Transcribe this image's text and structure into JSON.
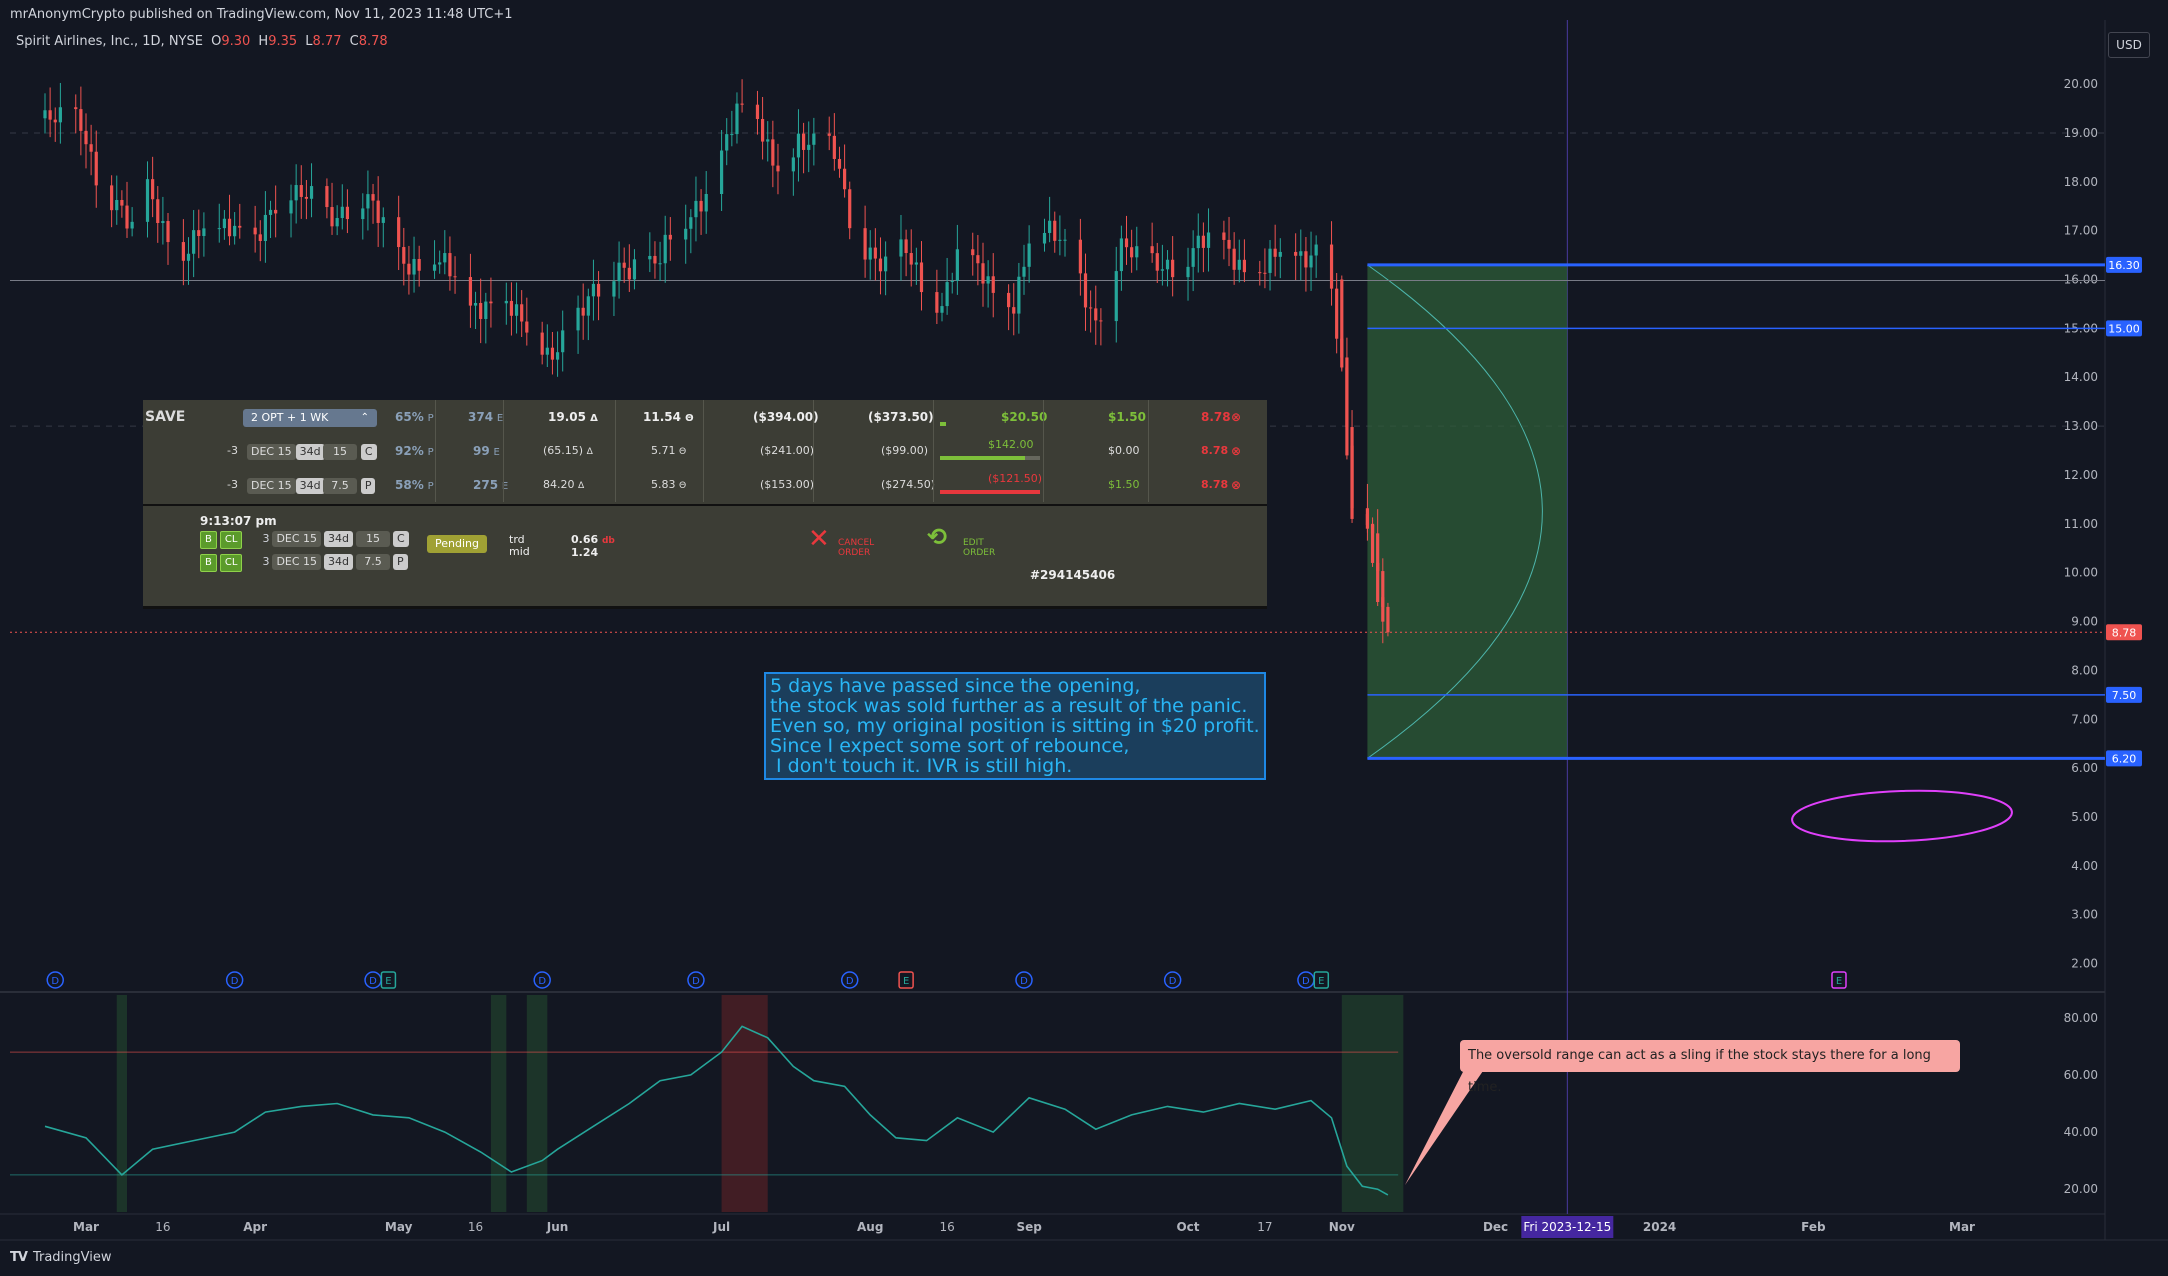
{
  "header": {
    "published": "mrAnonymCrypto published on TradingView.com, Nov 11, 2023 11:48 UTC+1",
    "symbol": "Spirit Airlines, Inc., 1D, NYSE",
    "open_label": "O",
    "open": "9.30",
    "high_label": "H",
    "high": "9.35",
    "low_label": "L",
    "low": "8.77",
    "close_label": "C",
    "close": "8.78",
    "currency": "USD"
  },
  "footer": {
    "logo": "TV",
    "brand": "TradingView"
  },
  "broker": {
    "save_label": "SAVE",
    "summary": {
      "strategy": "2 OPT + 1 WK",
      "prob": "65%",
      "prob_suffix": "P",
      "e": "374",
      "e_suffix": "E",
      "delta": "19.05",
      "delta_suffix": "Δ",
      "theta": "11.54",
      "theta_suffix": "Θ",
      "cost": "($394.00)",
      "value": "($373.50)",
      "pl": "$20.50",
      "mark": "$1.50",
      "price": "8.78"
    },
    "legs": [
      {
        "qty": "-3",
        "exp": "DEC 15",
        "dte": "34d",
        "strike": "15",
        "type": "C",
        "prob": "92%",
        "e": "99",
        "delta": "(65.15)",
        "theta": "5.71",
        "cost": "($241.00)",
        "value": "($99.00)",
        "pl": "$142.00",
        "mark": "$0.00",
        "price": "8.78",
        "pl_bar_pct": 85
      },
      {
        "qty": "-3",
        "exp": "DEC 15",
        "dte": "34d",
        "strike": "7.5",
        "type": "P",
        "prob": "58%",
        "e": "275",
        "delta": "84.20",
        "theta": "5.83",
        "cost": "($153.00)",
        "value": "($274.50)",
        "pl": "($121.50)",
        "mark": "$1.50",
        "price": "8.78",
        "pl_bar_pct": 100
      }
    ],
    "order": {
      "time": "9:13:07 pm",
      "side": "B",
      "action": "CL",
      "lines": [
        {
          "qty": "3",
          "exp": "DEC 15",
          "dte": "34d",
          "strike": "15",
          "type": "C"
        },
        {
          "qty": "3",
          "exp": "DEC 15",
          "dte": "34d",
          "strike": "7.5",
          "type": "P"
        }
      ],
      "status": "Pending",
      "trd_label": "trd",
      "mid_label": "mid",
      "trd": "0.66",
      "trd_suffix": "db",
      "mid": "1.24",
      "cancel_label": "CANCEL ORDER",
      "edit_label": "EDIT ORDER",
      "order_no": "#294145406"
    }
  },
  "annotation_text": "5 days have passed since the opening,\nthe stock was sold further as a result of the panic.\nEven so, my original position is sitting in $20 profit.\nSince I expect some sort of rebounce,\n I don't touch it. IVR is still high.",
  "callout_text": "The oversold range can act as a sling if the stock stays there for a long time.",
  "colors": {
    "up": "#26a69a",
    "down": "#ef5350",
    "level": "#2962ff",
    "range_fill": "#2e5e38",
    "ellipse": "#e040fb",
    "indicator": "#26a69a",
    "date_highlight": "#4527a0"
  },
  "chart_data": {
    "type": "candlestick",
    "price_axis": {
      "ticks": [
        "20.00",
        "19.00",
        "18.00",
        "17.00",
        "16.00",
        "15.00",
        "14.00",
        "13.00",
        "12.00",
        "11.00",
        "10.00",
        "9.00",
        "8.00",
        "7.00",
        "6.00",
        "5.00",
        "4.00",
        "3.00",
        "2.00"
      ],
      "ylim": [
        1.5,
        20.8
      ]
    },
    "time_axis": {
      "ticks": [
        {
          "label": "Mar",
          "date": "2023-03-01"
        },
        {
          "label": "16",
          "date": "2023-03-16"
        },
        {
          "label": "Apr",
          "date": "2023-04-03"
        },
        {
          "label": "May",
          "date": "2023-05-01"
        },
        {
          "label": "16",
          "date": "2023-05-16"
        },
        {
          "label": "Jun",
          "date": "2023-06-01"
        },
        {
          "label": "Jul",
          "date": "2023-07-03"
        },
        {
          "label": "Aug",
          "date": "2023-08-01"
        },
        {
          "label": "16",
          "date": "2023-08-16"
        },
        {
          "label": "Sep",
          "date": "2023-09-01"
        },
        {
          "label": "Oct",
          "date": "2023-10-02"
        },
        {
          "label": "17",
          "date": "2023-10-17"
        },
        {
          "label": "Nov",
          "date": "2023-11-01"
        },
        {
          "label": "Dec",
          "date": "2023-12-01"
        },
        {
          "label": "2024",
          "date": "2024-01-02"
        },
        {
          "label": "Feb",
          "date": "2024-02-01"
        },
        {
          "label": "Mar",
          "date": "2024-03-01"
        }
      ]
    },
    "highlight_date": {
      "label": "Fri 2023-12-15",
      "date": "2023-12-15"
    },
    "price_levels": [
      {
        "label": "16.30",
        "value": 16.3
      },
      {
        "label": "15.00",
        "value": 15.0
      },
      {
        "label": "8.78",
        "value": 8.78,
        "style": "last-price"
      },
      {
        "label": "7.50",
        "value": 7.5
      },
      {
        "label": "6.20",
        "value": 6.2
      }
    ],
    "range_box": {
      "x_start": "2023-11-06",
      "x_end": "2023-12-15",
      "y_low": 6.2,
      "y_high": 16.3
    },
    "close_series": [
      [
        "2023-02-21",
        19.3
      ],
      [
        "2023-02-24",
        19.0
      ],
      [
        "2023-02-28",
        19.1
      ],
      [
        "2023-03-03",
        18.4
      ],
      [
        "2023-03-07",
        17.7
      ],
      [
        "2023-03-10",
        16.8
      ],
      [
        "2023-03-13",
        17.6
      ],
      [
        "2023-03-16",
        17.1
      ],
      [
        "2023-03-20",
        16.8
      ],
      [
        "2023-03-23",
        17.0
      ],
      [
        "2023-03-27",
        16.7
      ],
      [
        "2023-03-30",
        17.0
      ],
      [
        "2023-04-03",
        17.2
      ],
      [
        "2023-04-06",
        17.5
      ],
      [
        "2023-04-11",
        17.4
      ],
      [
        "2023-04-14",
        17.7
      ],
      [
        "2023-04-18",
        17.6
      ],
      [
        "2023-04-21",
        17.5
      ],
      [
        "2023-04-25",
        17.3
      ],
      [
        "2023-04-28",
        17.0
      ],
      [
        "2023-05-03",
        16.6
      ],
      [
        "2023-05-08",
        16.2
      ],
      [
        "2023-05-11",
        15.9
      ],
      [
        "2023-05-15",
        15.6
      ],
      [
        "2023-05-18",
        15.8
      ],
      [
        "2023-05-22",
        15.4
      ],
      [
        "2023-05-25",
        14.8
      ],
      [
        "2023-05-30",
        14.6
      ],
      [
        "2023-06-02",
        15.1
      ],
      [
        "2023-06-06",
        15.3
      ],
      [
        "2023-06-09",
        15.5
      ],
      [
        "2023-06-13",
        16.3
      ],
      [
        "2023-06-16",
        16.6
      ],
      [
        "2023-06-21",
        16.3
      ],
      [
        "2023-06-26",
        17.0
      ],
      [
        "2023-06-29",
        17.8
      ],
      [
        "2023-07-03",
        18.8
      ],
      [
        "2023-07-06",
        19.3
      ],
      [
        "2023-07-10",
        19.0
      ],
      [
        "2023-07-13",
        18.5
      ],
      [
        "2023-07-18",
        19.0
      ],
      [
        "2023-07-21",
        18.6
      ],
      [
        "2023-07-25",
        18.4
      ],
      [
        "2023-07-28",
        17.4
      ],
      [
        "2023-08-01",
        16.8
      ],
      [
        "2023-08-04",
        16.2
      ],
      [
        "2023-08-08",
        16.3
      ],
      [
        "2023-08-11",
        15.9
      ],
      [
        "2023-08-15",
        15.8
      ],
      [
        "2023-08-18",
        16.6
      ],
      [
        "2023-08-22",
        15.9
      ],
      [
        "2023-08-25",
        15.6
      ],
      [
        "2023-08-29",
        15.8
      ],
      [
        "2023-09-01",
        17.0
      ],
      [
        "2023-09-06",
        16.6
      ],
      [
        "2023-09-11",
        16.2
      ],
      [
        "2023-09-14",
        15.4
      ],
      [
        "2023-09-19",
        16.4
      ],
      [
        "2023-09-22",
        16.2
      ],
      [
        "2023-09-27",
        16.6
      ],
      [
        "2023-10-02",
        16.4
      ],
      [
        "2023-10-05",
        16.5
      ],
      [
        "2023-10-10",
        16.7
      ],
      [
        "2023-10-13",
        16.5
      ],
      [
        "2023-10-17",
        16.2
      ],
      [
        "2023-10-20",
        16.3
      ],
      [
        "2023-10-24",
        16.4
      ],
      [
        "2023-10-27",
        16.9
      ],
      [
        "2023-10-30",
        15.9
      ],
      [
        "2023-11-01",
        14.2
      ],
      [
        "2023-11-03",
        11.2
      ],
      [
        "2023-11-06",
        10.9
      ],
      [
        "2023-11-08",
        10.1
      ],
      [
        "2023-11-09",
        9.3
      ],
      [
        "2023-11-10",
        8.78
      ]
    ],
    "indicator": {
      "axis_ticks": [
        "80.00",
        "60.00",
        "40.00",
        "20.00"
      ],
      "ylim": [
        12,
        88
      ],
      "overbought": 68,
      "oversold": 25,
      "series": [
        [
          "2023-02-21",
          42
        ],
        [
          "2023-03-01",
          38
        ],
        [
          "2023-03-08",
          25
        ],
        [
          "2023-03-14",
          34
        ],
        [
          "2023-03-22",
          37
        ],
        [
          "2023-03-30",
          40
        ],
        [
          "2023-04-05",
          47
        ],
        [
          "2023-04-12",
          49
        ],
        [
          "2023-04-19",
          50
        ],
        [
          "2023-04-26",
          46
        ],
        [
          "2023-05-03",
          45
        ],
        [
          "2023-05-10",
          40
        ],
        [
          "2023-05-17",
          33
        ],
        [
          "2023-05-23",
          26
        ],
        [
          "2023-05-29",
          30
        ],
        [
          "2023-06-01",
          34
        ],
        [
          "2023-06-08",
          42
        ],
        [
          "2023-06-15",
          50
        ],
        [
          "2023-06-21",
          58
        ],
        [
          "2023-06-27",
          60
        ],
        [
          "2023-07-03",
          68
        ],
        [
          "2023-07-07",
          77
        ],
        [
          "2023-07-12",
          73
        ],
        [
          "2023-07-17",
          63
        ],
        [
          "2023-07-21",
          58
        ],
        [
          "2023-07-27",
          56
        ],
        [
          "2023-08-01",
          46
        ],
        [
          "2023-08-06",
          38
        ],
        [
          "2023-08-12",
          37
        ],
        [
          "2023-08-18",
          45
        ],
        [
          "2023-08-25",
          40
        ],
        [
          "2023-09-01",
          52
        ],
        [
          "2023-09-08",
          48
        ],
        [
          "2023-09-14",
          41
        ],
        [
          "2023-09-21",
          46
        ],
        [
          "2023-09-28",
          49
        ],
        [
          "2023-10-05",
          47
        ],
        [
          "2023-10-12",
          50
        ],
        [
          "2023-10-19",
          48
        ],
        [
          "2023-10-26",
          51
        ],
        [
          "2023-10-30",
          45
        ],
        [
          "2023-11-02",
          28
        ],
        [
          "2023-11-05",
          21
        ],
        [
          "2023-11-08",
          20
        ],
        [
          "2023-11-10",
          18
        ]
      ],
      "highlight_zones": [
        {
          "start": "2023-03-07",
          "end": "2023-03-09",
          "kind": "oversold"
        },
        {
          "start": "2023-05-19",
          "end": "2023-05-22",
          "kind": "oversold"
        },
        {
          "start": "2023-05-26",
          "end": "2023-05-30",
          "kind": "oversold"
        },
        {
          "start": "2023-07-03",
          "end": "2023-07-12",
          "kind": "overbought"
        },
        {
          "start": "2023-11-01",
          "end": "2023-11-13",
          "kind": "oversold"
        }
      ]
    },
    "event_markers": [
      {
        "date": "2023-02-23",
        "label": "D"
      },
      {
        "date": "2023-03-30",
        "label": "D"
      },
      {
        "date": "2023-04-26",
        "label": "D"
      },
      {
        "date": "2023-04-29",
        "label": "E"
      },
      {
        "date": "2023-05-29",
        "label": "D"
      },
      {
        "date": "2023-06-28",
        "label": "D"
      },
      {
        "date": "2023-07-28",
        "label": "D"
      },
      {
        "date": "2023-08-08",
        "label": "E"
      },
      {
        "date": "2023-08-31",
        "label": "D"
      },
      {
        "date": "2023-09-29",
        "label": "D"
      },
      {
        "date": "2023-10-25",
        "label": "D"
      },
      {
        "date": "2023-10-28",
        "label": "E"
      },
      {
        "date": "2024-02-06",
        "label": "E"
      }
    ]
  }
}
